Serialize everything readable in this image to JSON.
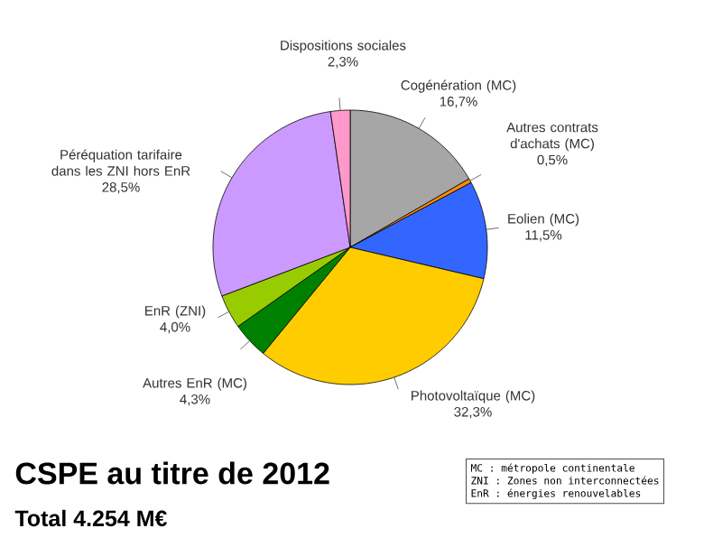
{
  "chart_data": {
    "type": "pie",
    "title": "CSPE au titre de 2012",
    "subtitle": "Total 4.254 M€",
    "categories": [
      "Cogénération (MC)",
      "Autres contrats d'achats (MC)",
      "Eolien (MC)",
      "Photovoltaïque (MC)",
      "Autres EnR (MC)",
      "EnR (ZNI)",
      "Péréquation tarifaire dans les ZNI hors EnR",
      "Dispositions sociales"
    ],
    "values": [
      16.7,
      0.5,
      11.5,
      32.3,
      4.3,
      4.0,
      28.5,
      2.3
    ],
    "value_labels": [
      "16,7%",
      "0,5%",
      "11,5%",
      "32,3%",
      "4,3%",
      "4,0%",
      "28,5%",
      "2,3%"
    ],
    "colors": [
      "#a6a6a6",
      "#ff8c00",
      "#3366ff",
      "#ffcc00",
      "#008000",
      "#99cc00",
      "#cc99ff",
      "#ff99cc"
    ],
    "annotations": [
      "MC : métropole continentale",
      "ZNI : Zones non interconnectées",
      "EnR : énergies renouvelables"
    ]
  }
}
